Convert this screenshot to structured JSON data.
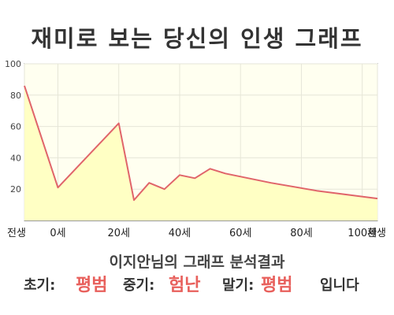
{
  "title": "재미로 보는 당신의 인생 그래프",
  "chart_data": {
    "type": "area",
    "title": "재미로 보는 당신의 인생 그래프",
    "xlabel": "",
    "ylabel": "",
    "xlim": [
      -11,
      105
    ],
    "ylim": [
      0,
      100
    ],
    "y_ticks": [
      100,
      80,
      60,
      40,
      20
    ],
    "x_ticks": [
      {
        "x": -11,
        "label": "전생"
      },
      {
        "x": 0,
        "label": "0세"
      },
      {
        "x": 20,
        "label": "20세"
      },
      {
        "x": 40,
        "label": "40세"
      },
      {
        "x": 60,
        "label": "60세"
      },
      {
        "x": 80,
        "label": "80세"
      },
      {
        "x": 100,
        "label": "100세"
      },
      {
        "x": 105,
        "label": "환생"
      }
    ],
    "grid": true,
    "series": [
      {
        "x": [
          -11,
          0,
          20,
          25,
          30,
          35,
          40,
          45,
          50,
          55,
          70,
          85,
          105
        ],
        "values": [
          86,
          21,
          62,
          13,
          24,
          20,
          29,
          27,
          33,
          30,
          24,
          19,
          14
        ]
      }
    ],
    "colors": {
      "line": "#e0646a",
      "fill": "#ffffc4",
      "plot_bg": "#fffff0",
      "grid": "#e6e6d8"
    }
  },
  "summary": "이지안님의 그래프 분석결과",
  "verdict": {
    "early_label": "초기:",
    "early_value": "평범",
    "mid_label": "중기:",
    "mid_value": "험난",
    "late_label": "말기:",
    "late_value": "평범",
    "ending": "입니다"
  }
}
